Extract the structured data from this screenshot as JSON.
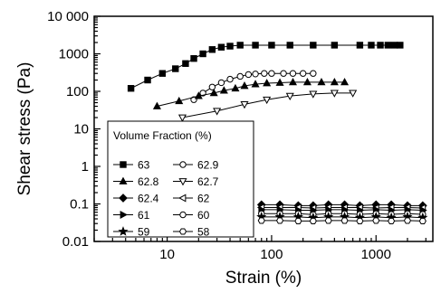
{
  "chart_data": {
    "type": "scatter",
    "title": "",
    "xlabel": "Strain (%)",
    "ylabel": "Shear stress (Pa)",
    "xscale": "log",
    "yscale": "log",
    "xlim": [
      2,
      3500
    ],
    "ylim": [
      0.01,
      10000
    ],
    "x_ticks": [
      10,
      100,
      1000
    ],
    "x_tick_labels": [
      "10",
      "100",
      "1000"
    ],
    "y_ticks": [
      0.01,
      0.1,
      1,
      10,
      100,
      1000,
      10000
    ],
    "y_tick_labels": [
      "0.01",
      "0.1",
      "1",
      "10",
      "100",
      "1000",
      "10 000"
    ],
    "grid": false,
    "legend": {
      "title": "Volume Fraction (%)",
      "placement": "lower-left",
      "columns": 2,
      "entries": [
        "63",
        "62.9",
        "62.8",
        "62.7",
        "62.4",
        "62",
        "61",
        "60",
        "59",
        "58"
      ]
    },
    "series": [
      {
        "name": "63",
        "marker": "square-filled",
        "x": [
          4.5,
          6.5,
          9,
          12,
          15,
          18,
          22,
          27,
          33,
          40,
          50,
          70,
          100,
          150,
          250,
          400,
          700,
          900,
          1100,
          1300,
          1500,
          1700
        ],
        "y": [
          120,
          200,
          300,
          400,
          550,
          750,
          1000,
          1300,
          1500,
          1600,
          1700,
          1700,
          1700,
          1700,
          1700,
          1700,
          1700,
          1700,
          1700,
          1700,
          1700,
          1700
        ]
      },
      {
        "name": "62.9",
        "marker": "circle-open",
        "x": [
          18,
          22,
          27,
          33,
          40,
          50,
          60,
          70,
          85,
          100,
          130,
          160,
          200,
          250
        ],
        "y": [
          60,
          90,
          130,
          170,
          210,
          250,
          280,
          290,
          300,
          300,
          300,
          300,
          300,
          300
        ]
      },
      {
        "name": "62.8",
        "marker": "triangle-up-filled",
        "x": [
          8,
          13,
          20,
          28,
          35,
          45,
          55,
          70,
          90,
          120,
          160,
          220,
          300,
          400,
          500
        ],
        "y": [
          40,
          55,
          75,
          90,
          105,
          120,
          140,
          155,
          165,
          170,
          175,
          175,
          175,
          175,
          175
        ]
      },
      {
        "name": "62.7",
        "marker": "triangle-down-open",
        "x": [
          14,
          30,
          55,
          90,
          150,
          250,
          400,
          600
        ],
        "y": [
          20,
          30,
          45,
          60,
          75,
          85,
          90,
          90
        ]
      },
      {
        "name": "62.4",
        "marker": "diamond-filled",
        "x": [
          80,
          120,
          180,
          250,
          350,
          500,
          700,
          1000,
          1400,
          2000,
          2800
        ],
        "y": [
          0.095,
          0.095,
          0.09,
          0.09,
          0.095,
          0.095,
          0.09,
          0.095,
          0.095,
          0.09,
          0.09
        ]
      },
      {
        "name": "62",
        "marker": "triangle-left-open",
        "x": [
          80,
          120,
          180,
          250,
          350,
          500,
          700,
          1000,
          1400,
          2000,
          2800
        ],
        "y": [
          0.08,
          0.08,
          0.08,
          0.078,
          0.08,
          0.08,
          0.08,
          0.078,
          0.08,
          0.08,
          0.078
        ]
      },
      {
        "name": "61",
        "marker": "triangle-right-filled",
        "x": [
          80,
          120,
          180,
          250,
          350,
          500,
          700,
          1000,
          1400,
          2000,
          2800
        ],
        "y": [
          0.07,
          0.07,
          0.068,
          0.068,
          0.07,
          0.07,
          0.068,
          0.07,
          0.068,
          0.07,
          0.068
        ]
      },
      {
        "name": "60",
        "marker": "circle-open",
        "x": [
          80,
          120,
          180,
          250,
          350,
          500,
          700,
          1000,
          1400,
          2000,
          2800
        ],
        "y": [
          0.055,
          0.055,
          0.055,
          0.052,
          0.055,
          0.055,
          0.053,
          0.055,
          0.053,
          0.055,
          0.053
        ]
      },
      {
        "name": "59",
        "marker": "star-filled",
        "x": [
          80,
          120,
          180,
          250,
          350,
          500,
          700,
          1000,
          1400,
          2000,
          2800
        ],
        "y": [
          0.045,
          0.045,
          0.045,
          0.043,
          0.045,
          0.045,
          0.043,
          0.045,
          0.043,
          0.045,
          0.043
        ]
      },
      {
        "name": "58",
        "marker": "hexagon-open",
        "x": [
          80,
          120,
          180,
          250,
          350,
          500,
          700,
          1000,
          1400,
          2000,
          2800
        ],
        "y": [
          0.036,
          0.036,
          0.035,
          0.035,
          0.036,
          0.036,
          0.035,
          0.036,
          0.035,
          0.036,
          0.035
        ]
      }
    ]
  }
}
